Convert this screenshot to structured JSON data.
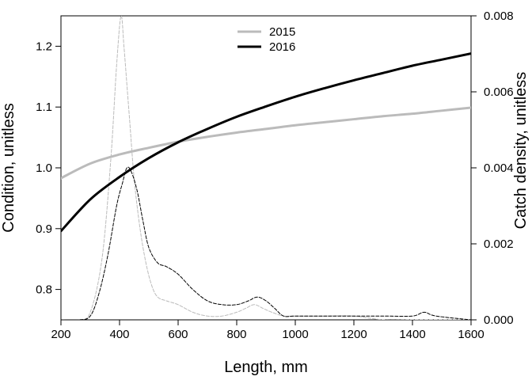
{
  "chart_data": {
    "type": "line",
    "title": "",
    "xlabel": "Length, mm",
    "ylabel": "Condition, unitless",
    "y2label": "Catch density, unitless",
    "xlim": [
      200,
      1600
    ],
    "ylim": [
      0.75,
      1.25
    ],
    "y2lim": [
      0,
      0.008
    ],
    "x_ticks": [
      200,
      400,
      600,
      800,
      1000,
      1200,
      1400,
      1600
    ],
    "y_ticks": [
      0.8,
      0.9,
      1.0,
      1.1,
      1.2
    ],
    "y_tick_labels": [
      "0.8",
      "0.9",
      "1.0",
      "1.1",
      "1.2"
    ],
    "y2_ticks": [
      0,
      0.002,
      0.004,
      0.006,
      0.008
    ],
    "y2_tick_labels": [
      "0.000",
      "0.002",
      "0.004",
      "0.006",
      "0.008"
    ],
    "grid": false,
    "legend": {
      "position": "top-center",
      "entries": [
        {
          "label": "2015",
          "color": "#bbbbbb"
        },
        {
          "label": "2016",
          "color": "#000000"
        }
      ]
    },
    "series": [
      {
        "name": "2015",
        "kind": "condition",
        "axis": "left",
        "color": "#bbbbbb",
        "style": "solid-thick",
        "x": [
          200,
          300,
          400,
          500,
          600,
          700,
          800,
          900,
          1000,
          1100,
          1200,
          1300,
          1400,
          1500,
          1600
        ],
        "y": [
          0.983,
          1.007,
          1.022,
          1.033,
          1.043,
          1.051,
          1.058,
          1.064,
          1.07,
          1.075,
          1.08,
          1.085,
          1.089,
          1.094,
          1.099
        ]
      },
      {
        "name": "2016",
        "kind": "condition",
        "axis": "left",
        "color": "#000000",
        "style": "solid-thick",
        "x": [
          200,
          300,
          400,
          500,
          600,
          700,
          800,
          900,
          1000,
          1100,
          1200,
          1300,
          1400,
          1500,
          1600
        ],
        "y": [
          0.896,
          0.948,
          0.985,
          1.016,
          1.042,
          1.064,
          1.084,
          1.101,
          1.117,
          1.131,
          1.144,
          1.156,
          1.168,
          1.178,
          1.188
        ]
      },
      {
        "name": "2015",
        "kind": "density",
        "axis": "right",
        "color": "#bbbbbb",
        "style": "dashed-thin",
        "x": [
          200,
          260,
          300,
          340,
          370,
          390,
          405,
          415,
          425,
          435,
          450,
          470,
          490,
          510,
          530,
          560,
          600,
          650,
          700,
          750,
          800,
          830,
          860,
          890,
          920,
          960,
          1000,
          1100,
          1200,
          1300,
          1400,
          1500,
          1600
        ],
        "y": [
          0,
          0,
          0.0002,
          0.0016,
          0.0042,
          0.0067,
          0.008,
          0.0072,
          0.0062,
          0.0052,
          0.0037,
          0.0024,
          0.0015,
          0.0009,
          0.0006,
          0.0005,
          0.0004,
          0.0002,
          0.0001,
          0.0001,
          0.0002,
          0.0003,
          0.0004,
          0.0003,
          0.0002,
          0.0001,
          0.0001,
          0.0001,
          0.0001,
          0,
          0,
          0,
          0
        ]
      },
      {
        "name": "2016",
        "kind": "density",
        "axis": "right",
        "color": "#000000",
        "style": "dashed-thin",
        "x": [
          200,
          260,
          300,
          330,
          360,
          390,
          410,
          425,
          440,
          460,
          480,
          500,
          530,
          560,
          600,
          650,
          700,
          750,
          800,
          840,
          870,
          900,
          930,
          960,
          1000,
          1100,
          1200,
          1300,
          1400,
          1440,
          1480,
          1600
        ],
        "y": [
          0,
          0,
          0.0001,
          0.0007,
          0.0017,
          0.003,
          0.0036,
          0.004,
          0.0039,
          0.0034,
          0.0026,
          0.0019,
          0.0015,
          0.0014,
          0.0012,
          0.0008,
          0.0005,
          0.0004,
          0.0004,
          0.0005,
          0.0006,
          0.0005,
          0.0003,
          0.0001,
          0.0001,
          0.0001,
          0.0001,
          0.0001,
          0.0001,
          0.0002,
          0.0001,
          0
        ]
      }
    ]
  }
}
